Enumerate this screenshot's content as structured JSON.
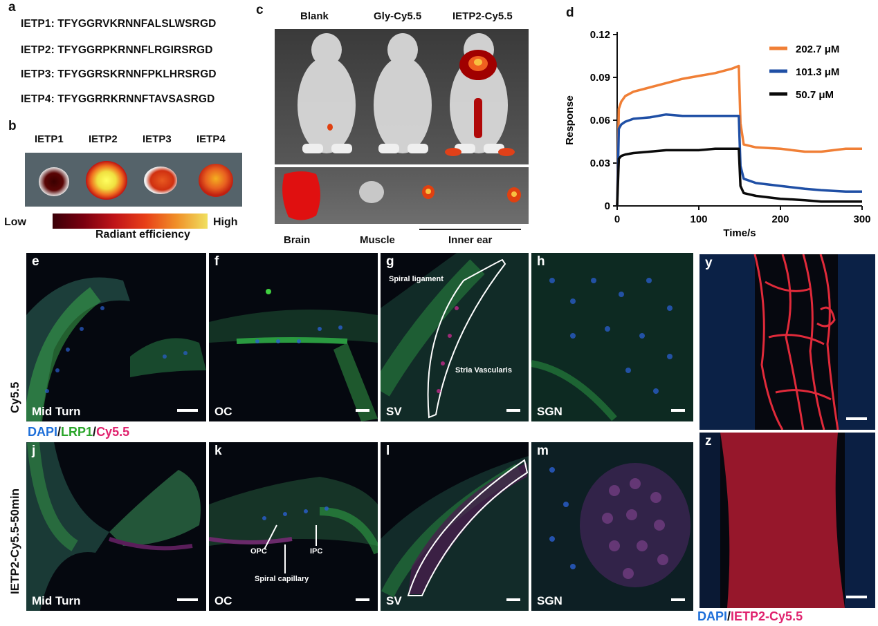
{
  "panel_a": {
    "letter": "a",
    "sequences": [
      "IETP1: TFYGGRVKRNNFALSLWSRGD",
      "IETP2: TFYGGRPKRNNFLRGIRSRGD",
      "IETP3: TFYGGRSKRNNFPKLHRSRGD",
      "IETP4: TFYGGRRKRNNFTAVSASRGD"
    ]
  },
  "panel_b": {
    "letter": "b",
    "labels": [
      "IETP1",
      "IETP2",
      "IETP3",
      "IETP4"
    ],
    "scale_low": "Low",
    "scale_high": "High",
    "scale_title": "Radiant efficiency"
  },
  "panel_c": {
    "letter": "c",
    "mouse_labels": [
      "Blank",
      "Gly-Cy5.5",
      "IETP2-Cy5.5"
    ],
    "organ_labels": [
      "Brain",
      "Muscle",
      "Inner ear"
    ]
  },
  "panel_d": {
    "letter": "d"
  },
  "chart_data": {
    "type": "line",
    "xlabel": "Time/s",
    "ylabel": "Response",
    "xlim": [
      0,
      300
    ],
    "ylim": [
      0,
      0.12
    ],
    "xticks": [
      0,
      100,
      200,
      300
    ],
    "yticks": [
      0,
      0.03,
      0.06,
      0.09,
      0.12
    ],
    "ytick_labels": [
      "0",
      "0.03",
      "0.06",
      "0.09",
      "0.12"
    ],
    "legend_position": "top-right",
    "grid": false,
    "series": [
      {
        "name": "202.7 μM",
        "color": "#f07f36",
        "x": [
          0,
          2,
          5,
          10,
          20,
          40,
          60,
          80,
          100,
          120,
          140,
          149,
          151,
          155,
          170,
          200,
          230,
          250,
          280,
          300
        ],
        "y": [
          0,
          0.068,
          0.073,
          0.077,
          0.08,
          0.083,
          0.086,
          0.089,
          0.091,
          0.093,
          0.096,
          0.098,
          0.058,
          0.043,
          0.041,
          0.04,
          0.038,
          0.038,
          0.04,
          0.04
        ]
      },
      {
        "name": "101.3 μM",
        "color": "#1f4fa5",
        "x": [
          0,
          2,
          5,
          10,
          20,
          40,
          60,
          80,
          100,
          120,
          140,
          149,
          151,
          155,
          170,
          200,
          230,
          250,
          280,
          300
        ],
        "y": [
          0,
          0.054,
          0.057,
          0.059,
          0.061,
          0.062,
          0.064,
          0.063,
          0.063,
          0.063,
          0.063,
          0.063,
          0.028,
          0.019,
          0.016,
          0.014,
          0.012,
          0.011,
          0.01,
          0.01
        ]
      },
      {
        "name": "50.7 μM",
        "color": "#0a0a0a",
        "x": [
          0,
          2,
          5,
          10,
          20,
          40,
          60,
          80,
          100,
          120,
          140,
          149,
          151,
          155,
          170,
          200,
          230,
          250,
          280,
          300
        ],
        "y": [
          0,
          0.033,
          0.035,
          0.036,
          0.037,
          0.038,
          0.039,
          0.039,
          0.039,
          0.04,
          0.04,
          0.04,
          0.014,
          0.009,
          0.007,
          0.005,
          0.004,
          0.003,
          0.003,
          0.003
        ]
      }
    ]
  },
  "micro": {
    "row1_label": "Cy5.5",
    "row2_label": "IETP2-Cy5.5-50min",
    "row1": [
      {
        "letter": "e",
        "label": "Mid Turn"
      },
      {
        "letter": "f",
        "label": "OC"
      },
      {
        "letter": "g",
        "label": "SV"
      },
      {
        "letter": "h",
        "label": "SGN"
      }
    ],
    "row2": [
      {
        "letter": "j",
        "label": "Mid Turn"
      },
      {
        "letter": "k",
        "label": "OC"
      },
      {
        "letter": "l",
        "label": "SV"
      },
      {
        "letter": "m",
        "label": "SGN"
      }
    ],
    "annotations": {
      "spiral_ligament": "Spiral ligament",
      "stria_vascularis": "Stria Vascularis",
      "opc": "OPC",
      "ipc": "IPC",
      "spiral_capillary": "Spiral capillary"
    },
    "stain_legend": {
      "dapi": "DAPI",
      "sep1": "/",
      "lrp1": "LRP1",
      "sep2": "/",
      "cy55": "Cy5.5"
    },
    "y_letter": "y",
    "z_letter": "z",
    "stain_legend2": {
      "dapi": "DAPI",
      "sep": "/",
      "ietp": "IETP2-Cy5.5"
    }
  },
  "colors": {
    "dapi": "#1e6fd9",
    "lrp1": "#2aa52a",
    "cy55": "#e0226e",
    "ietp": "#e0226e"
  }
}
